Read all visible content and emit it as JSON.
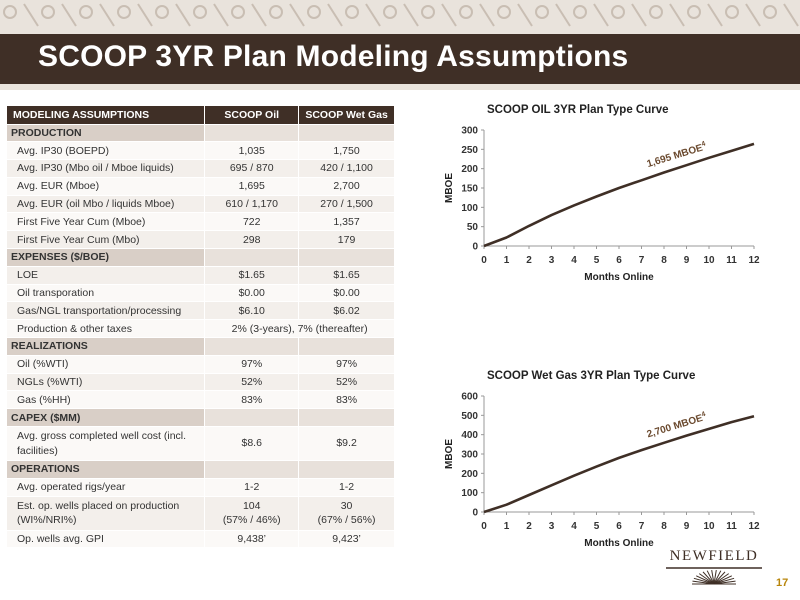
{
  "slide": {
    "title": "SCOOP 3YR Plan Modeling Assumptions",
    "page_number": "17",
    "logo_text": "NEWFIELD"
  },
  "colors": {
    "brown_dark": "#3f2f26",
    "section_fill": "#d9cfc7",
    "curve": "#3f2f26",
    "page_number": "#b8860b"
  },
  "table": {
    "headers": [
      "MODELING ASSUMPTIONS",
      "SCOOP Oil",
      "SCOOP Wet Gas"
    ],
    "rows": [
      {
        "type": "section",
        "label": "PRODUCTION"
      },
      {
        "type": "row",
        "label": "Avg. IP30 (BOEPD)",
        "oil": "1,035",
        "gas": "1,750"
      },
      {
        "type": "row",
        "label": "Avg. IP30 (Mbo oil / Mboe liquids)",
        "oil": "695 / 870",
        "gas": "420 / 1,100"
      },
      {
        "type": "row",
        "label": "Avg. EUR (Mboe)",
        "oil": "1,695",
        "gas": "2,700"
      },
      {
        "type": "row",
        "label": "Avg. EUR (oil Mbo / liquids Mboe)",
        "oil": "610 / 1,170",
        "gas": "270 / 1,500"
      },
      {
        "type": "row",
        "label": "First Five Year Cum (Mboe)",
        "oil": "722",
        "gas": "1,357"
      },
      {
        "type": "row",
        "label": "First Five Year Cum (Mbo)",
        "oil": "298",
        "gas": "179"
      },
      {
        "type": "section",
        "label": "EXPENSES ($/BOE)"
      },
      {
        "type": "row",
        "label": "LOE",
        "oil": "$1.65",
        "gas": "$1.65"
      },
      {
        "type": "row",
        "label": "Oil transporation",
        "oil": "$0.00",
        "gas": "$0.00"
      },
      {
        "type": "row",
        "label": "Gas/NGL transportation/processing",
        "oil": "$6.10",
        "gas": "$6.02"
      },
      {
        "type": "span",
        "label": "Production & other taxes",
        "value": "2% (3-years), 7% (thereafter)"
      },
      {
        "type": "section",
        "label": "REALIZATIONS"
      },
      {
        "type": "row",
        "label": "Oil (%WTI)",
        "oil": "97%",
        "gas": "97%"
      },
      {
        "type": "row",
        "label": "NGLs (%WTI)",
        "oil": "52%",
        "gas": "52%"
      },
      {
        "type": "row",
        "label": "Gas (%HH)",
        "oil": "83%",
        "gas": "83%"
      },
      {
        "type": "section",
        "label": "CAPEX ($MM)"
      },
      {
        "type": "row",
        "tall": true,
        "label": "Avg. gross completed well cost (incl. facilities)",
        "oil": "$8.6",
        "gas": "$9.2"
      },
      {
        "type": "section",
        "label": "OPERATIONS"
      },
      {
        "type": "row",
        "label": "Avg. operated rigs/year",
        "oil": "1-2",
        "gas": "1-2"
      },
      {
        "type": "row",
        "tall": true,
        "label": "Est. op. wells placed on production (WI%/NRI%)",
        "oil": "104\n(57% / 46%)",
        "gas": "30\n(67% / 56%)"
      },
      {
        "type": "row",
        "label": "Op. wells avg. GPI",
        "oil": "9,438’",
        "gas": "9,423’"
      }
    ]
  },
  "chart_data": [
    {
      "type": "line",
      "title": "SCOOP OIL 3YR Plan Type Curve",
      "xlabel": "Months Online",
      "ylabel": "MBOE",
      "xlim": [
        0,
        12
      ],
      "ylim": [
        0,
        300
      ],
      "xticks": [
        "0",
        "1",
        "2",
        "3",
        "4",
        "5",
        "6",
        "7",
        "8",
        "9",
        "10",
        "11",
        "12"
      ],
      "yticks": [
        "0",
        "50",
        "100",
        "150",
        "200",
        "250",
        "300"
      ],
      "annotation": "1,695 MBOE",
      "annotation_sup": "4",
      "grid": false,
      "series": [
        {
          "x": [
            0,
            1,
            2,
            3,
            4,
            5,
            6,
            7,
            8,
            9,
            10,
            11,
            12
          ],
          "y": [
            0,
            22,
            52,
            80,
            105,
            128,
            150,
            170,
            190,
            209,
            228,
            246,
            264
          ]
        }
      ]
    },
    {
      "type": "line",
      "title": "SCOOP Wet Gas 3YR Plan Type Curve",
      "xlabel": "Months Online",
      "ylabel": "MBOE",
      "xlim": [
        0,
        12
      ],
      "ylim": [
        0,
        600
      ],
      "xticks": [
        "0",
        "1",
        "2",
        "3",
        "4",
        "5",
        "6",
        "7",
        "8",
        "9",
        "10",
        "11",
        "12"
      ],
      "yticks": [
        "0",
        "100",
        "200",
        "300",
        "400",
        "500",
        "600"
      ],
      "annotation": "2,700 MBOE",
      "annotation_sup": "4",
      "grid": false,
      "series": [
        {
          "x": [
            0,
            1,
            2,
            3,
            4,
            5,
            6,
            7,
            8,
            9,
            10,
            11,
            12
          ],
          "y": [
            0,
            38,
            88,
            138,
            188,
            235,
            280,
            320,
            358,
            395,
            430,
            465,
            495
          ]
        }
      ]
    }
  ]
}
